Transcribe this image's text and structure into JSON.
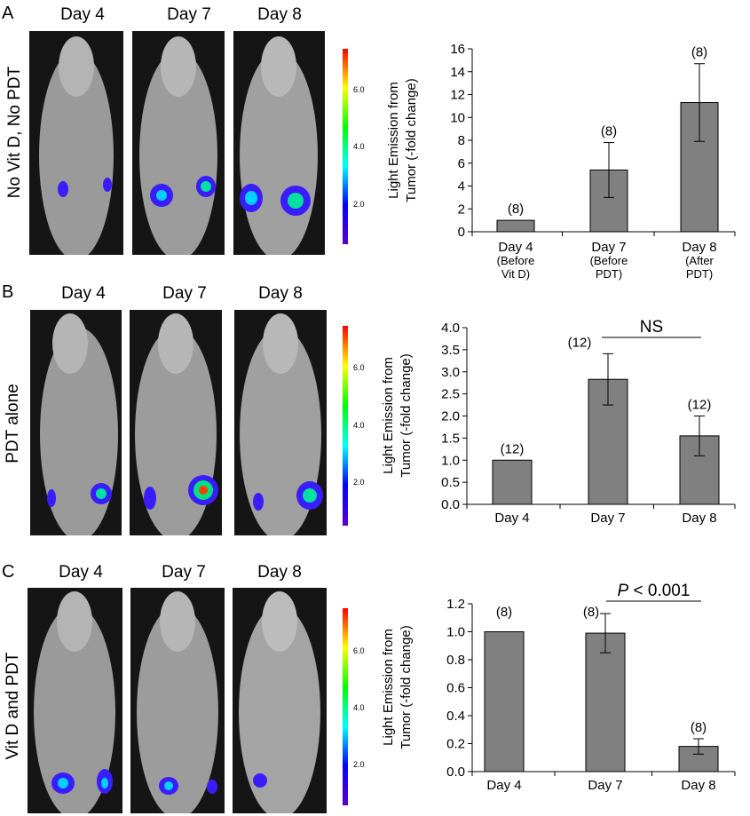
{
  "colorbar_ticks": [
    "6.0",
    "4.0",
    "2.0"
  ],
  "colorbar_colors": [
    "#ff0000",
    "#ffff00",
    "#00ff00",
    "#00ffff",
    "#0000ff",
    "#5a00c8"
  ],
  "bar_color": "#808080",
  "panels": [
    {
      "letter": "A",
      "side_label": "No Vit D, No PDT",
      "days": [
        "Day 4",
        "Day 7",
        "Day 8"
      ]
    },
    {
      "letter": "B",
      "side_label": "PDT  alone",
      "days": [
        "Day 4",
        "Day 7",
        "Day 8"
      ]
    },
    {
      "letter": "C",
      "side_label": "Vit D and PDT",
      "days": [
        "Day 4",
        "Day 7",
        "Day 8"
      ]
    }
  ],
  "chart_data": [
    {
      "type": "bar",
      "ylabel": [
        "Light Emission from",
        "Tumor  (-fold change)"
      ],
      "categories": [
        [
          "Day 4",
          "(Before",
          "Vit D)"
        ],
        [
          "Day 7",
          "(Before",
          "PDT)"
        ],
        [
          "Day 8",
          "(After",
          "PDT)"
        ]
      ],
      "values": [
        1.0,
        5.4,
        11.3
      ],
      "errors": [
        0,
        2.4,
        3.4
      ],
      "n_labels": [
        "(8)",
        "(8)",
        "(8)"
      ],
      "ylim": [
        0,
        16
      ],
      "yticks": [
        "0",
        "2",
        "4",
        "6",
        "8",
        "10",
        "12",
        "14",
        "16"
      ]
    },
    {
      "type": "bar",
      "ylabel": [
        "Light Emission from",
        "Tumor (-fold change)"
      ],
      "categories": [
        [
          "Day 4"
        ],
        [
          "Day 7"
        ],
        [
          "Day 8"
        ]
      ],
      "values": [
        1.0,
        2.83,
        1.55
      ],
      "errors": [
        0,
        0.58,
        0.45
      ],
      "n_labels": [
        "(12)",
        "(12)",
        "(12)"
      ],
      "ylim": [
        0,
        4
      ],
      "yticks": [
        "0.0",
        "0.5",
        "1.0",
        "1.5",
        "2.0",
        "2.5",
        "3.0",
        "3.5",
        "4.0"
      ],
      "annotation": "NS"
    },
    {
      "type": "bar",
      "ylabel": [
        "Light Emission from",
        "Tumor  (-fold change)"
      ],
      "categories": [
        [
          "Day 4"
        ],
        [
          "Day 7"
        ],
        [
          "Day 8"
        ]
      ],
      "values": [
        1.0,
        0.99,
        0.18
      ],
      "errors": [
        0,
        0.14,
        0.055
      ],
      "n_labels": [
        "(8)",
        "(8)",
        "(8)"
      ],
      "ylim": [
        0,
        1.2
      ],
      "yticks": [
        "0.0",
        "0.2",
        "0.4",
        "0.6",
        "0.8",
        "1.0",
        "1.2"
      ],
      "annotation_italic": "P",
      "annotation_rest": " < 0.001"
    }
  ]
}
